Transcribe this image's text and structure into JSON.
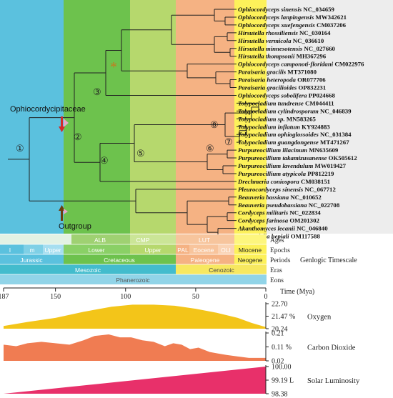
{
  "tree": {
    "family_label": "Ophiocordycipitaceae",
    "outgroup_label": "Outgroup",
    "nodes": [
      "①",
      "②",
      "③",
      "④",
      "⑤",
      "⑥",
      "⑦",
      "⑧"
    ],
    "star": "*",
    "taxa": [
      {
        "genus": "Ophiocordyceps sinensis",
        "acc": "NC_034659"
      },
      {
        "genus": "Ophiocordyceps lanpingensis",
        "acc": "MW342621"
      },
      {
        "genus": "Ophiocordyceps xuefengensis",
        "acc": "CM037206"
      },
      {
        "genus": "Hirsutella rhossiliensis",
        "acc": "NC_030164"
      },
      {
        "genus": "Hirsutella vermicola",
        "acc": "NC_036610"
      },
      {
        "genus": "Hirsutella minnesotensis",
        "acc": "NC_027660"
      },
      {
        "genus": "Hirsutella thompsonii",
        "acc": "MH367296"
      },
      {
        "genus": "Ophiocordyceps camponoti-floridani",
        "acc": "CM022976"
      },
      {
        "genus": "Paraisaria gracilis",
        "acc": "MT371080"
      },
      {
        "genus": "Paraisaria heteropoda",
        "acc": "OR077706"
      },
      {
        "genus": "Paraisaria gracilioides",
        "acc": "OP832231"
      },
      {
        "genus": "Ophiocordyceps sobolifera",
        "acc": "PP024668"
      },
      {
        "genus": "Tolypocladium tundrense",
        "acc": "CM044411"
      },
      {
        "genus": "Tolypocladium cylindrosporum",
        "acc": "NC_046839"
      },
      {
        "genus": "Tolypocladium sp.",
        "acc": "MN583265"
      },
      {
        "genus": "Tolypocladium inflatum",
        "acc": "KY924883"
      },
      {
        "genus": "Tolypocladium ophioglossoides",
        "acc": "NC_031384"
      },
      {
        "genus": "Tolypocladium guangdongense",
        "acc": "MT471267"
      },
      {
        "genus": "Purpureocillium lilacinum",
        "acc": "MN635609"
      },
      {
        "genus": "Purpureocillium takamizusanense",
        "acc": "OK505612"
      },
      {
        "genus": "Purpureocillium lavendulum",
        "acc": "MW019427"
      },
      {
        "genus": "Purpureocillium atypicola",
        "acc": "PP812219"
      },
      {
        "genus": "Drechmeria coniospora",
        "acc": "CM038151"
      },
      {
        "genus": "Pleurocordyceps sinensis",
        "acc": "NC_067712"
      },
      {
        "genus": "Beauveria bassiana",
        "acc": "NC_010652"
      },
      {
        "genus": "Beauveria pseudobassiana",
        "acc": "NC_022708"
      },
      {
        "genus": "Cordyceps militaris",
        "acc": "NC_022834"
      },
      {
        "genus": "Cordyceps farinosa",
        "acc": "OM201302"
      },
      {
        "genus": "Akanthomyces lecanii",
        "acc": "NC_046840"
      },
      {
        "genus": "Samsoniella hepiali",
        "acc": "OM117588"
      }
    ]
  },
  "timescale": {
    "title": "Genlogic Timescale",
    "row_labels": {
      "ages": "Ages",
      "epochs": "Epochs",
      "periods": "Periods",
      "eras": "Eras",
      "eons": "Eons"
    },
    "ages": [
      "ALB",
      "CMP",
      "LUT"
    ],
    "epochs": [
      "l",
      "m",
      "Upper",
      "Lower",
      "Upper",
      "PAL",
      "Eocene",
      "OLI",
      "Miocene"
    ],
    "periods": [
      "Jurassic",
      "Cretaceous",
      "Paleogene",
      "Neogene"
    ],
    "eras": [
      "Mesozoic",
      "Cenozoic"
    ],
    "eon": "Phanerozoic",
    "colors": {
      "jurassic": "#5bc1de",
      "lower_cretaceous": "#6dc24d",
      "upper_cretaceous": "#b6d86d",
      "paleogene": "#f5b283",
      "neogene": "#fdf15a",
      "mesozoic": "#43bccd",
      "cenozoic": "#f7e860",
      "phanerozoic": "#91d4e8"
    }
  },
  "axis": {
    "label": "Time (Mya)",
    "min": 0,
    "max": 187,
    "ticks": [
      187,
      150,
      100,
      50,
      0
    ]
  },
  "chart_data": [
    {
      "type": "area",
      "title": "Oxygen",
      "x": [
        187,
        170,
        150,
        130,
        110,
        95,
        80,
        65,
        50,
        35,
        20,
        10,
        0
      ],
      "values": [
        20.5,
        20.9,
        21.3,
        21.9,
        22.4,
        22.6,
        22.6,
        22.5,
        22.2,
        21.8,
        21.3,
        20.8,
        20.4
      ],
      "ylim": [
        20.24,
        22.7
      ],
      "yticks": [
        "22.70",
        "21.47 %",
        "20.24"
      ],
      "color": "#f3c519"
    },
    {
      "type": "area",
      "title": "Carbon Dioxide",
      "x": [
        187,
        178,
        170,
        160,
        150,
        140,
        130,
        122,
        112,
        104,
        96,
        88,
        80,
        72,
        66,
        60,
        54,
        48,
        40,
        34,
        28,
        20,
        12,
        6,
        0
      ],
      "values": [
        0.13,
        0.12,
        0.14,
        0.15,
        0.14,
        0.13,
        0.16,
        0.19,
        0.2,
        0.18,
        0.18,
        0.16,
        0.15,
        0.12,
        0.14,
        0.13,
        0.1,
        0.11,
        0.08,
        0.07,
        0.06,
        0.05,
        0.04,
        0.04,
        0.04
      ],
      "ylim": [
        0.02,
        0.21
      ],
      "yticks": [
        "0.21",
        "0.11 %",
        "0.02"
      ],
      "color": "#f07c52"
    },
    {
      "type": "area",
      "title": "Solar Luminosity",
      "x": [
        187,
        0
      ],
      "values": [
        98.38,
        100.0
      ],
      "ylim": [
        98.38,
        100.0
      ],
      "yticks": [
        "100.00",
        "99.19 L",
        "98.38"
      ],
      "color": "#e8306a"
    }
  ]
}
